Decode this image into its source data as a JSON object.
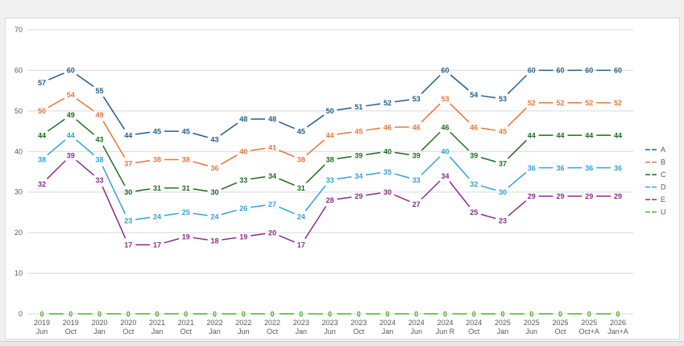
{
  "chart_data": {
    "type": "line",
    "title": "",
    "xlabel": "",
    "ylabel": "",
    "ylim": [
      0,
      70
    ],
    "yticks": [
      0,
      10,
      20,
      30,
      40,
      50,
      60,
      70
    ],
    "grid": "horizontal",
    "legend_position": "right",
    "categories": [
      [
        "2019",
        "Jun"
      ],
      [
        "2019",
        "Oct"
      ],
      [
        "2020",
        "Jan"
      ],
      [
        "2020",
        "Oct"
      ],
      [
        "2021",
        "Jan"
      ],
      [
        "2021",
        "Oct"
      ],
      [
        "2022",
        "Jan"
      ],
      [
        "2022",
        "Jun"
      ],
      [
        "2022",
        "Oct"
      ],
      [
        "2023",
        "Jan"
      ],
      [
        "2023",
        "Jun"
      ],
      [
        "2023",
        "Oct"
      ],
      [
        "2024",
        "Jan"
      ],
      [
        "2024",
        "Jun"
      ],
      [
        "2024",
        "Jun R"
      ],
      [
        "2024",
        "Oct"
      ],
      [
        "2025",
        "Jan"
      ],
      [
        "2025",
        "Jun"
      ],
      [
        "2025",
        "Oct"
      ],
      [
        "2025",
        "Oct+A"
      ],
      [
        "2026",
        "Jan+A"
      ]
    ],
    "series": [
      {
        "name": "A",
        "color": "#1f5f8b",
        "values": [
          57,
          60,
          55,
          44,
          45,
          45,
          43,
          48,
          48,
          45,
          50,
          51,
          52,
          53,
          60,
          54,
          53,
          60,
          60,
          60,
          60
        ]
      },
      {
        "name": "B",
        "color": "#e8763a",
        "values": [
          50,
          54,
          49,
          37,
          38,
          38,
          36,
          40,
          41,
          38,
          44,
          45,
          46,
          46,
          53,
          46,
          45,
          52,
          52,
          52,
          52
        ]
      },
      {
        "name": "C",
        "color": "#1f6b1f",
        "values": [
          44,
          49,
          43,
          30,
          31,
          31,
          30,
          33,
          34,
          31,
          38,
          39,
          40,
          39,
          46,
          39,
          37,
          44,
          44,
          44,
          44
        ]
      },
      {
        "name": "D",
        "color": "#2ea3d6",
        "values": [
          38,
          44,
          38,
          23,
          24,
          25,
          24,
          26,
          27,
          24,
          33,
          34,
          35,
          33,
          40,
          32,
          30,
          36,
          36,
          36,
          36
        ]
      },
      {
        "name": "E",
        "color": "#8e2a8e",
        "values": [
          32,
          39,
          33,
          17,
          17,
          19,
          18,
          19,
          20,
          17,
          28,
          29,
          30,
          27,
          34,
          25,
          23,
          29,
          29,
          29,
          29
        ]
      },
      {
        "name": "U",
        "color": "#4caf2a",
        "values": [
          0,
          0,
          0,
          0,
          0,
          0,
          0,
          0,
          0,
          0,
          0,
          0,
          0,
          0,
          0,
          0,
          0,
          0,
          0,
          0,
          0
        ]
      }
    ]
  }
}
